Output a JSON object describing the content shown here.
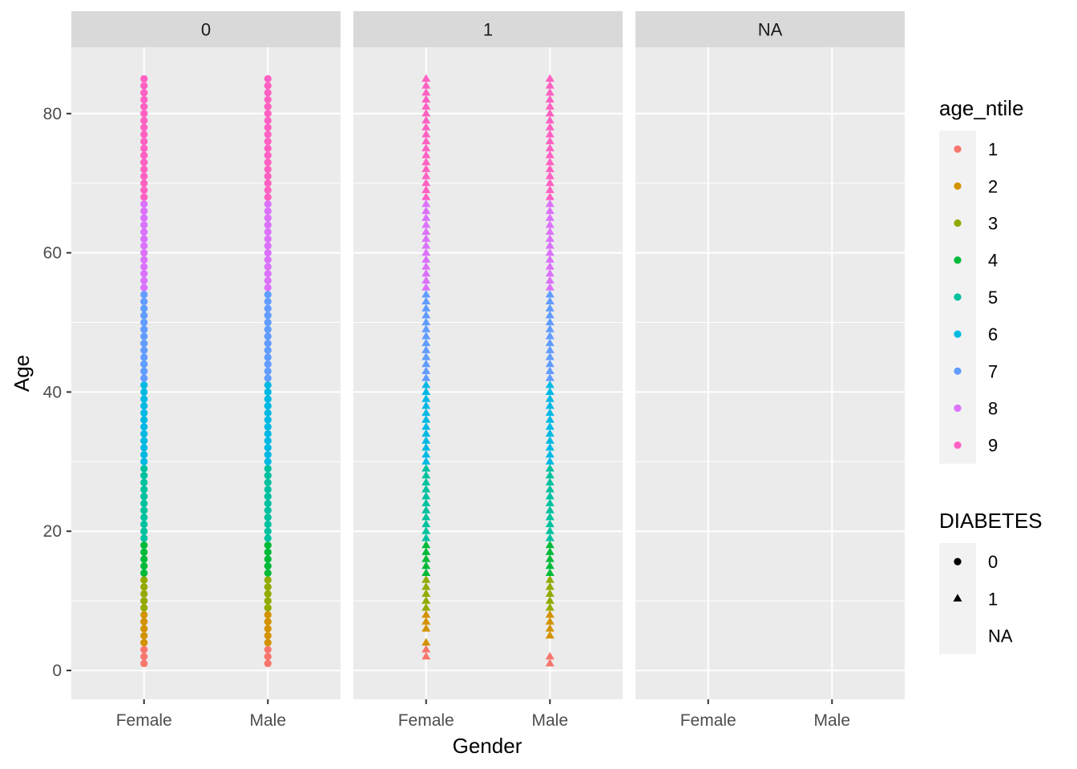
{
  "chart_data": {
    "type": "scatter",
    "facet_variable": "DIABETES",
    "facets": [
      "0",
      "1",
      "NA"
    ],
    "xlabel": "Gender",
    "ylabel": "Age",
    "x_categories": [
      "Female",
      "Male"
    ],
    "ylim": [
      -4,
      89
    ],
    "yticks": [
      0,
      20,
      40,
      60,
      80
    ],
    "grid": true,
    "legend_position": "right",
    "color_legend": {
      "title": "age_ntile",
      "entries": [
        {
          "label": "1",
          "color": "#F8766D",
          "age_range": [
            1,
            3
          ]
        },
        {
          "label": "2",
          "color": "#D39200",
          "age_range": [
            4,
            8
          ]
        },
        {
          "label": "3",
          "color": "#93AA00",
          "age_range": [
            9,
            13
          ]
        },
        {
          "label": "4",
          "color": "#00BA38",
          "age_range": [
            14,
            18
          ]
        },
        {
          "label": "5",
          "color": "#00C19F",
          "age_range": [
            19,
            29
          ]
        },
        {
          "label": "6",
          "color": "#00B9E3",
          "age_range": [
            30,
            41
          ]
        },
        {
          "label": "7",
          "color": "#619CFF",
          "age_range": [
            42,
            54
          ]
        },
        {
          "label": "8",
          "color": "#DB72FB",
          "age_range": [
            55,
            67
          ]
        },
        {
          "label": "9",
          "color": "#FF61C3",
          "age_range": [
            68,
            85
          ]
        }
      ]
    },
    "shape_legend": {
      "title": "DIABETES",
      "entries": [
        {
          "label": "0",
          "shape": "circle"
        },
        {
          "label": "1",
          "shape": "triangle"
        },
        {
          "label": "NA",
          "shape": "none"
        }
      ]
    },
    "series": [
      {
        "facet": "0",
        "x": "Female",
        "shape": "circle",
        "ages": [
          1,
          2,
          3,
          4,
          5,
          6,
          7,
          8,
          9,
          10,
          11,
          12,
          13,
          14,
          15,
          16,
          17,
          18,
          19,
          20,
          21,
          22,
          23,
          24,
          25,
          26,
          27,
          28,
          29,
          30,
          31,
          32,
          33,
          34,
          35,
          36,
          37,
          38,
          39,
          40,
          41,
          42,
          43,
          44,
          45,
          46,
          47,
          48,
          49,
          50,
          51,
          52,
          53,
          54,
          55,
          56,
          57,
          58,
          59,
          60,
          61,
          62,
          63,
          64,
          65,
          66,
          67,
          68,
          69,
          70,
          71,
          72,
          73,
          74,
          75,
          76,
          77,
          78,
          79,
          80,
          81,
          82,
          83,
          84,
          85
        ]
      },
      {
        "facet": "0",
        "x": "Male",
        "shape": "circle",
        "ages": [
          1,
          2,
          3,
          4,
          5,
          6,
          7,
          8,
          9,
          10,
          11,
          12,
          13,
          14,
          15,
          16,
          17,
          18,
          19,
          20,
          21,
          22,
          23,
          24,
          25,
          26,
          27,
          28,
          29,
          30,
          31,
          32,
          33,
          34,
          35,
          36,
          37,
          38,
          39,
          40,
          41,
          42,
          43,
          44,
          45,
          46,
          47,
          48,
          49,
          50,
          51,
          52,
          53,
          54,
          55,
          56,
          57,
          58,
          59,
          60,
          61,
          62,
          63,
          64,
          65,
          66,
          67,
          68,
          69,
          70,
          71,
          72,
          73,
          74,
          75,
          76,
          77,
          78,
          79,
          80,
          81,
          82,
          83,
          84,
          85
        ]
      },
      {
        "facet": "1",
        "x": "Female",
        "shape": "triangle",
        "ages": [
          2,
          3,
          4,
          6,
          7,
          8,
          9,
          10,
          11,
          12,
          13,
          14,
          15,
          16,
          17,
          18,
          19,
          20,
          21,
          22,
          23,
          24,
          25,
          26,
          27,
          28,
          29,
          30,
          31,
          32,
          33,
          34,
          35,
          36,
          37,
          38,
          39,
          40,
          41,
          42,
          43,
          44,
          45,
          46,
          47,
          48,
          49,
          50,
          51,
          52,
          53,
          54,
          55,
          56,
          57,
          58,
          59,
          60,
          61,
          62,
          63,
          64,
          65,
          66,
          67,
          68,
          69,
          70,
          71,
          72,
          73,
          74,
          75,
          76,
          77,
          78,
          79,
          80,
          81,
          82,
          83,
          84,
          85
        ]
      },
      {
        "facet": "1",
        "x": "Male",
        "shape": "triangle",
        "ages": [
          1,
          2,
          5,
          6,
          7,
          8,
          9,
          10,
          11,
          12,
          13,
          14,
          15,
          16,
          17,
          18,
          19,
          20,
          21,
          22,
          23,
          24,
          25,
          26,
          27,
          28,
          29,
          30,
          31,
          32,
          33,
          34,
          35,
          36,
          37,
          38,
          39,
          40,
          41,
          42,
          43,
          44,
          45,
          46,
          47,
          48,
          49,
          50,
          51,
          52,
          53,
          54,
          55,
          56,
          57,
          58,
          59,
          60,
          61,
          62,
          63,
          64,
          65,
          66,
          67,
          68,
          69,
          70,
          71,
          72,
          73,
          74,
          75,
          76,
          77,
          78,
          79,
          80,
          81,
          82,
          83,
          84,
          85
        ]
      }
    ]
  }
}
